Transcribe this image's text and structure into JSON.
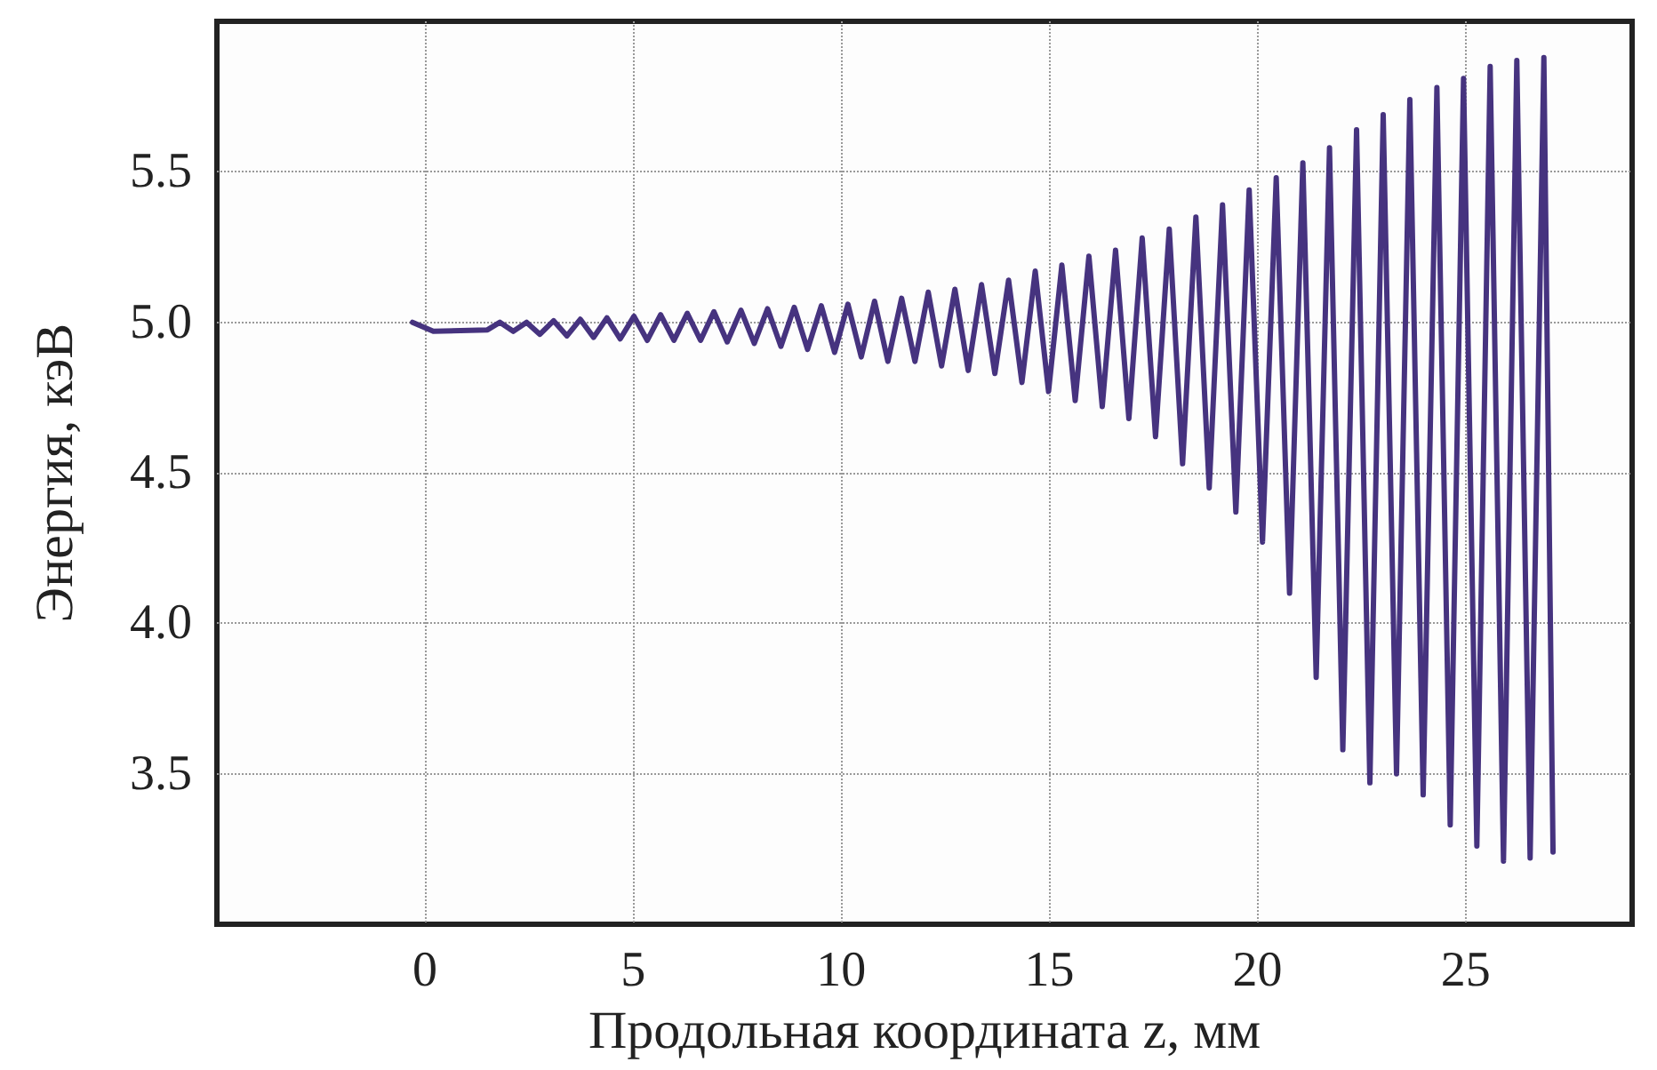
{
  "chart_data": {
    "type": "line",
    "xlabel": "Продольная координата z, мм",
    "ylabel": "Энергия, кэВ",
    "xlim": [
      -5,
      29
    ],
    "xticks": [
      0,
      5,
      10,
      15,
      20,
      25
    ],
    "ylim": [
      3,
      6
    ],
    "yticks": [
      3.5,
      {
        "value": 4,
        "label": "4.0"
      },
      4.5,
      {
        "value": 5,
        "label": "5.0"
      },
      5.5
    ],
    "grid": true,
    "marker": "none",
    "line_style": "solid",
    "series": [
      {
        "color": "#46337f",
        "x": [
          -0.3,
          0.2,
          1.5,
          1.8,
          2.12,
          2.44,
          2.76,
          3.09,
          3.41,
          3.73,
          4.05,
          4.37,
          4.69,
          5.02,
          5.34,
          5.66,
          5.98,
          6.3,
          6.62,
          6.94,
          7.26,
          7.59,
          7.91,
          8.23,
          8.55,
          8.87,
          9.19,
          9.52,
          9.84,
          10.16,
          10.48,
          10.8,
          11.12,
          11.45,
          11.77,
          12.09,
          12.41,
          12.73,
          13.05,
          13.37,
          13.69,
          14.02,
          14.34,
          14.66,
          14.98,
          15.3,
          15.62,
          15.95,
          16.27,
          16.59,
          16.91,
          17.23,
          17.55,
          17.88,
          18.2,
          18.52,
          18.84,
          19.16,
          19.48,
          19.8,
          20.12,
          20.45,
          20.77,
          21.09,
          21.41,
          21.73,
          22.05,
          22.38,
          22.7,
          23.02,
          23.34,
          23.66,
          23.98,
          24.31,
          24.63,
          24.95,
          25.27,
          25.59,
          25.91,
          26.23,
          26.55,
          26.88,
          27.1
        ],
        "values": [
          5.0,
          4.97,
          4.975,
          5.0,
          4.97,
          5.0,
          4.96,
          5.005,
          4.955,
          5.01,
          4.95,
          5.015,
          4.945,
          5.02,
          4.94,
          5.025,
          4.94,
          5.03,
          4.94,
          5.035,
          4.935,
          5.04,
          4.93,
          5.045,
          4.92,
          5.05,
          4.91,
          5.055,
          4.9,
          5.06,
          4.885,
          5.07,
          4.87,
          5.08,
          4.87,
          5.1,
          4.855,
          5.11,
          4.84,
          5.125,
          4.83,
          5.14,
          4.8,
          5.17,
          4.77,
          5.19,
          4.74,
          5.22,
          4.72,
          5.24,
          4.68,
          5.28,
          4.62,
          5.31,
          4.53,
          5.35,
          4.45,
          5.39,
          4.37,
          5.44,
          4.27,
          5.48,
          4.1,
          5.53,
          3.82,
          5.58,
          3.58,
          5.64,
          3.47,
          5.69,
          3.5,
          5.74,
          3.43,
          5.78,
          3.33,
          5.81,
          3.26,
          5.85,
          3.21,
          5.87,
          3.22,
          5.88,
          3.24
        ]
      }
    ]
  }
}
